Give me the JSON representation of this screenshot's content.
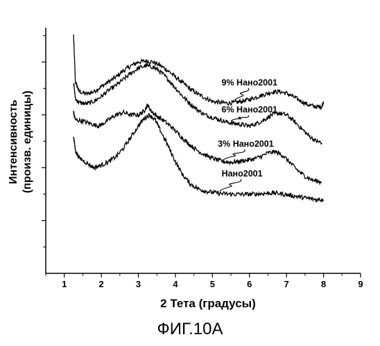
{
  "figure_caption": "ФИГ.10А",
  "chart_data": {
    "type": "line",
    "xlabel": "2 Тета (градусы)",
    "ylabel_line1": "Интенсивность",
    "ylabel_line2": "(произв. единицы)",
    "xlim": [
      0.5,
      9
    ],
    "x_ticks": [
      "1",
      "2",
      "3",
      "4",
      "5",
      "6",
      "7",
      "8",
      "9"
    ],
    "y_ticks_labeled": false,
    "grid": false,
    "series": [
      {
        "name": "9% Нано2001",
        "points": [
          [
            1.25,
            0.97
          ],
          [
            1.3,
            0.78
          ],
          [
            1.4,
            0.74
          ],
          [
            1.6,
            0.73
          ],
          [
            1.8,
            0.74
          ],
          [
            2.0,
            0.76
          ],
          [
            2.2,
            0.78
          ],
          [
            2.4,
            0.8
          ],
          [
            2.6,
            0.825
          ],
          [
            2.8,
            0.845
          ],
          [
            3.0,
            0.86
          ],
          [
            3.2,
            0.865
          ],
          [
            3.4,
            0.86
          ],
          [
            3.6,
            0.845
          ],
          [
            3.8,
            0.825
          ],
          [
            4.0,
            0.8
          ],
          [
            4.2,
            0.775
          ],
          [
            4.4,
            0.75
          ],
          [
            4.6,
            0.73
          ],
          [
            4.8,
            0.715
          ],
          [
            5.0,
            0.7
          ],
          [
            5.2,
            0.695
          ],
          [
            5.4,
            0.693
          ],
          [
            5.6,
            0.695
          ],
          [
            5.8,
            0.7
          ],
          [
            6.0,
            0.708
          ],
          [
            6.2,
            0.718
          ],
          [
            6.4,
            0.728
          ],
          [
            6.6,
            0.738
          ],
          [
            6.8,
            0.74
          ],
          [
            7.0,
            0.733
          ],
          [
            7.2,
            0.718
          ],
          [
            7.4,
            0.7
          ],
          [
            7.6,
            0.685
          ],
          [
            7.8,
            0.678
          ],
          [
            7.95,
            0.678
          ],
          [
            8.0,
            0.7
          ]
        ]
      },
      {
        "name": "6% Нано2001",
        "points": [
          [
            1.25,
            0.78
          ],
          [
            1.3,
            0.71
          ],
          [
            1.4,
            0.695
          ],
          [
            1.6,
            0.69
          ],
          [
            1.8,
            0.7
          ],
          [
            2.0,
            0.72
          ],
          [
            2.2,
            0.745
          ],
          [
            2.4,
            0.765
          ],
          [
            2.6,
            0.79
          ],
          [
            2.8,
            0.815
          ],
          [
            3.0,
            0.835
          ],
          [
            3.2,
            0.845
          ],
          [
            3.4,
            0.84
          ],
          [
            3.6,
            0.82
          ],
          [
            3.8,
            0.79
          ],
          [
            4.0,
            0.755
          ],
          [
            4.2,
            0.72
          ],
          [
            4.4,
            0.69
          ],
          [
            4.6,
            0.665
          ],
          [
            4.8,
            0.645
          ],
          [
            5.0,
            0.635
          ],
          [
            5.2,
            0.625
          ],
          [
            5.4,
            0.615
          ],
          [
            5.6,
            0.61
          ],
          [
            5.8,
            0.605
          ],
          [
            6.0,
            0.6
          ],
          [
            6.2,
            0.61
          ],
          [
            6.4,
            0.625
          ],
          [
            6.6,
            0.645
          ],
          [
            6.8,
            0.652
          ],
          [
            7.0,
            0.645
          ],
          [
            7.2,
            0.62
          ],
          [
            7.4,
            0.59
          ],
          [
            7.6,
            0.56
          ],
          [
            7.8,
            0.538
          ],
          [
            7.95,
            0.532
          ]
        ]
      },
      {
        "name": "3% Нано2001",
        "points": [
          [
            1.25,
            0.655
          ],
          [
            1.3,
            0.625
          ],
          [
            1.5,
            0.62
          ],
          [
            1.7,
            0.61
          ],
          [
            1.9,
            0.6
          ],
          [
            2.0,
            0.605
          ],
          [
            2.2,
            0.625
          ],
          [
            2.4,
            0.645
          ],
          [
            2.6,
            0.655
          ],
          [
            2.8,
            0.645
          ],
          [
            3.0,
            0.645
          ],
          [
            3.15,
            0.66
          ],
          [
            3.25,
            0.685
          ],
          [
            3.35,
            0.66
          ],
          [
            3.5,
            0.64
          ],
          [
            3.7,
            0.62
          ],
          [
            3.9,
            0.595
          ],
          [
            4.1,
            0.565
          ],
          [
            4.3,
            0.535
          ],
          [
            4.5,
            0.51
          ],
          [
            4.7,
            0.49
          ],
          [
            4.9,
            0.475
          ],
          [
            5.1,
            0.463
          ],
          [
            5.3,
            0.455
          ],
          [
            5.5,
            0.452
          ],
          [
            5.7,
            0.455
          ],
          [
            5.9,
            0.46
          ],
          [
            6.1,
            0.465
          ],
          [
            6.3,
            0.475
          ],
          [
            6.5,
            0.49
          ],
          [
            6.7,
            0.495
          ],
          [
            6.9,
            0.48
          ],
          [
            7.1,
            0.45
          ],
          [
            7.3,
            0.42
          ],
          [
            7.5,
            0.395
          ],
          [
            7.7,
            0.38
          ],
          [
            7.95,
            0.37
          ]
        ]
      },
      {
        "name": "Нано2001",
        "points": [
          [
            1.25,
            0.56
          ],
          [
            1.3,
            0.5
          ],
          [
            1.4,
            0.47
          ],
          [
            1.6,
            0.45
          ],
          [
            1.8,
            0.43
          ],
          [
            2.0,
            0.44
          ],
          [
            2.2,
            0.455
          ],
          [
            2.4,
            0.475
          ],
          [
            2.6,
            0.51
          ],
          [
            2.8,
            0.555
          ],
          [
            3.0,
            0.6
          ],
          [
            3.15,
            0.63
          ],
          [
            3.3,
            0.645
          ],
          [
            3.45,
            0.625
          ],
          [
            3.6,
            0.58
          ],
          [
            3.8,
            0.52
          ],
          [
            4.0,
            0.455
          ],
          [
            4.2,
            0.4
          ],
          [
            4.4,
            0.365
          ],
          [
            4.6,
            0.345
          ],
          [
            4.8,
            0.335
          ],
          [
            5.0,
            0.33
          ],
          [
            5.2,
            0.325
          ],
          [
            5.4,
            0.323
          ],
          [
            5.6,
            0.322
          ],
          [
            5.8,
            0.322
          ],
          [
            6.0,
            0.322
          ],
          [
            6.2,
            0.323
          ],
          [
            6.4,
            0.325
          ],
          [
            6.6,
            0.327
          ],
          [
            6.8,
            0.325
          ],
          [
            7.0,
            0.32
          ],
          [
            7.2,
            0.315
          ],
          [
            7.4,
            0.31
          ],
          [
            7.6,
            0.305
          ],
          [
            7.8,
            0.3
          ],
          [
            8.0,
            0.3
          ]
        ]
      }
    ],
    "annotations": [
      {
        "text": "9% Нано2001",
        "x": 6.0,
        "y": 0.765,
        "anchor_x": 5.6,
        "anchor_y": 0.705
      },
      {
        "text": "6% Нано2001",
        "x": 6.0,
        "y": 0.655,
        "anchor_x": 5.5,
        "anchor_y": 0.62
      },
      {
        "text": "3% Нано2001",
        "x": 5.9,
        "y": 0.515,
        "anchor_x": 5.3,
        "anchor_y": 0.462
      },
      {
        "text": "Нано2001",
        "x": 5.8,
        "y": 0.395,
        "anchor_x": 5.2,
        "anchor_y": 0.335
      }
    ]
  }
}
